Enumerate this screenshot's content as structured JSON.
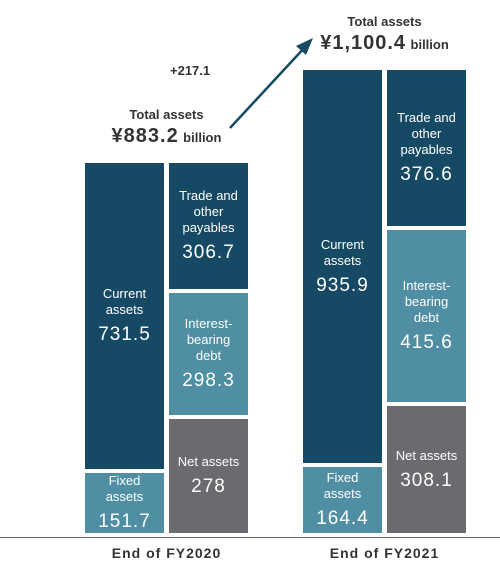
{
  "chart_data": {
    "type": "stacked-bar",
    "categories": [
      "End of FY2020",
      "End of FY2021"
    ],
    "total_title": "Total assets",
    "totals": [
      883.2,
      1100.4
    ],
    "total_labels": [
      "¥883.2",
      "¥1,100.4"
    ],
    "unit": "billion",
    "change": 217.1,
    "change_label": "+217.1",
    "assets": [
      {
        "name": "Current assets",
        "color": "#164a64",
        "values": [
          731.5,
          935.9
        ]
      },
      {
        "name": "Fixed assets",
        "color": "#4f8ea3",
        "values": [
          151.7,
          164.4
        ]
      }
    ],
    "liabilities": [
      {
        "name": "Trade and other payables",
        "color": "#164a64",
        "values": [
          306.7,
          376.6
        ]
      },
      {
        "name": "Interest-bearing debt",
        "color": "#4f8ea3",
        "values": [
          298.3,
          415.6
        ]
      },
      {
        "name": "Net assets",
        "color": "#6b6b6f",
        "values": [
          278,
          308.1
        ]
      }
    ]
  }
}
